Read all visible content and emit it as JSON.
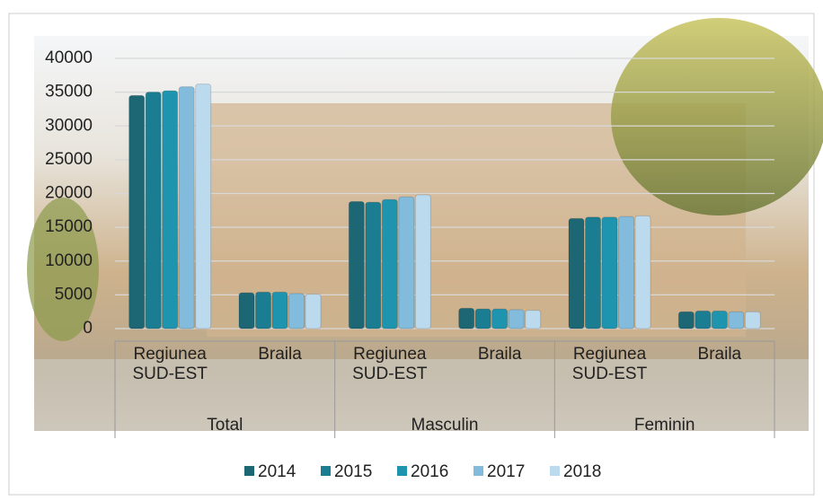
{
  "chart_data": {
    "type": "bar",
    "categories": [
      "Regiunea SUD-EST",
      "Braila",
      "Regiunea SUD-EST",
      "Braila",
      "Regiunea SUD-EST",
      "Braila"
    ],
    "groups": [
      "Total",
      "Masculin",
      "Feminin"
    ],
    "series": [
      {
        "name": "2014",
        "color": "#1d6674",
        "values": [
          34500,
          5300,
          18800,
          3000,
          16300,
          2500
        ]
      },
      {
        "name": "2015",
        "color": "#1b7d91",
        "values": [
          35000,
          5400,
          18700,
          2900,
          16500,
          2600
        ]
      },
      {
        "name": "2016",
        "color": "#1f94ae",
        "values": [
          35200,
          5400,
          19100,
          2900,
          16500,
          2600
        ]
      },
      {
        "name": "2017",
        "color": "#82bbdb",
        "values": [
          35800,
          5200,
          19500,
          2800,
          16600,
          2500
        ]
      },
      {
        "name": "2018",
        "color": "#bcdaee",
        "values": [
          36200,
          5100,
          19800,
          2700,
          16700,
          2500
        ]
      }
    ],
    "ylim": [
      0,
      40000
    ],
    "yticks": [
      0,
      5000,
      10000,
      15000,
      20000,
      25000,
      30000,
      35000,
      40000
    ],
    "grid": true
  }
}
